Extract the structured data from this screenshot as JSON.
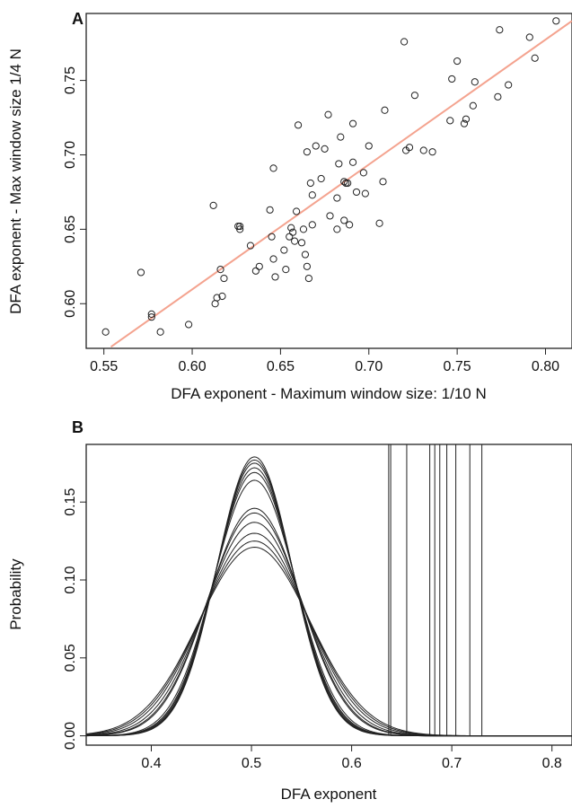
{
  "colors": {
    "fit_line": "#f4a38f",
    "ink": "#222222"
  },
  "chart_data": [
    {
      "type": "scatter",
      "panel": "A",
      "xlabel": "DFA exponent - Maximum window size: 1/10 N",
      "ylabel": "DFA exponent - Max window size 1/4 N",
      "xlim": [
        0.54,
        0.815
      ],
      "ylim": [
        0.57,
        0.795
      ],
      "xticks": [
        "0.55",
        "0.60",
        "0.65",
        "0.70",
        "0.75",
        "0.80"
      ],
      "yticks": [
        "0.60",
        "0.65",
        "0.70",
        "0.75"
      ],
      "grid": false,
      "series": [
        {
          "marker": "open-circle",
          "points": [
            [
              0.551,
              0.581
            ],
            [
              0.571,
              0.621
            ],
            [
              0.577,
              0.591
            ],
            [
              0.577,
              0.593
            ],
            [
              0.582,
              0.581
            ],
            [
              0.598,
              0.586
            ],
            [
              0.612,
              0.666
            ],
            [
              0.613,
              0.6
            ],
            [
              0.614,
              0.604
            ],
            [
              0.616,
              0.623
            ],
            [
              0.617,
              0.605
            ],
            [
              0.618,
              0.617
            ],
            [
              0.626,
              0.652
            ],
            [
              0.627,
              0.65
            ],
            [
              0.627,
              0.652
            ],
            [
              0.633,
              0.639
            ],
            [
              0.636,
              0.622
            ],
            [
              0.638,
              0.625
            ],
            [
              0.644,
              0.663
            ],
            [
              0.645,
              0.645
            ],
            [
              0.646,
              0.63
            ],
            [
              0.646,
              0.691
            ],
            [
              0.647,
              0.618
            ],
            [
              0.652,
              0.636
            ],
            [
              0.653,
              0.623
            ],
            [
              0.655,
              0.645
            ],
            [
              0.656,
              0.651
            ],
            [
              0.657,
              0.648
            ],
            [
              0.658,
              0.642
            ],
            [
              0.659,
              0.662
            ],
            [
              0.66,
              0.72
            ],
            [
              0.662,
              0.641
            ],
            [
              0.663,
              0.65
            ],
            [
              0.664,
              0.633
            ],
            [
              0.665,
              0.625
            ],
            [
              0.665,
              0.702
            ],
            [
              0.666,
              0.617
            ],
            [
              0.667,
              0.681
            ],
            [
              0.668,
              0.673
            ],
            [
              0.668,
              0.653
            ],
            [
              0.67,
              0.706
            ],
            [
              0.673,
              0.684
            ],
            [
              0.675,
              0.704
            ],
            [
              0.677,
              0.727
            ],
            [
              0.678,
              0.659
            ],
            [
              0.682,
              0.65
            ],
            [
              0.682,
              0.671
            ],
            [
              0.683,
              0.694
            ],
            [
              0.684,
              0.712
            ],
            [
              0.686,
              0.682
            ],
            [
              0.686,
              0.656
            ],
            [
              0.687,
              0.681
            ],
            [
              0.688,
              0.681
            ],
            [
              0.689,
              0.653
            ],
            [
              0.691,
              0.695
            ],
            [
              0.691,
              0.721
            ],
            [
              0.693,
              0.675
            ],
            [
              0.697,
              0.688
            ],
            [
              0.698,
              0.674
            ],
            [
              0.7,
              0.706
            ],
            [
              0.706,
              0.654
            ],
            [
              0.708,
              0.682
            ],
            [
              0.709,
              0.73
            ],
            [
              0.72,
              0.776
            ],
            [
              0.721,
              0.703
            ],
            [
              0.723,
              0.705
            ],
            [
              0.726,
              0.74
            ],
            [
              0.731,
              0.703
            ],
            [
              0.736,
              0.702
            ],
            [
              0.746,
              0.723
            ],
            [
              0.747,
              0.751
            ],
            [
              0.75,
              0.763
            ],
            [
              0.754,
              0.721
            ],
            [
              0.755,
              0.724
            ],
            [
              0.759,
              0.733
            ],
            [
              0.76,
              0.749
            ],
            [
              0.773,
              0.739
            ],
            [
              0.774,
              0.784
            ],
            [
              0.779,
              0.747
            ],
            [
              0.791,
              0.779
            ],
            [
              0.794,
              0.765
            ],
            [
              0.806,
              0.79
            ]
          ]
        }
      ],
      "fit_line": {
        "x": [
          0.554,
          0.815
        ],
        "y": [
          0.571,
          0.79
        ]
      }
    },
    {
      "type": "line",
      "panel": "B",
      "xlabel": "DFA exponent",
      "ylabel": "Probability",
      "xlim": [
        0.335,
        0.82
      ],
      "ylim": [
        -0.006,
        0.187
      ],
      "xticks": [
        "0.4",
        "0.5",
        "0.6",
        "0.7",
        "0.8"
      ],
      "yticks": [
        "0.00",
        "0.05",
        "0.10",
        "0.15"
      ],
      "grid": false,
      "density_curves": {
        "center": 0.503,
        "peak_heights": [
          0.179,
          0.177,
          0.175,
          0.172,
          0.169,
          0.164,
          0.146,
          0.143,
          0.137,
          0.13,
          0.125,
          0.121
        ]
      },
      "vertical_lines_x": [
        0.637,
        0.639,
        0.655,
        0.678,
        0.683,
        0.688,
        0.695,
        0.704,
        0.718,
        0.73
      ]
    }
  ]
}
